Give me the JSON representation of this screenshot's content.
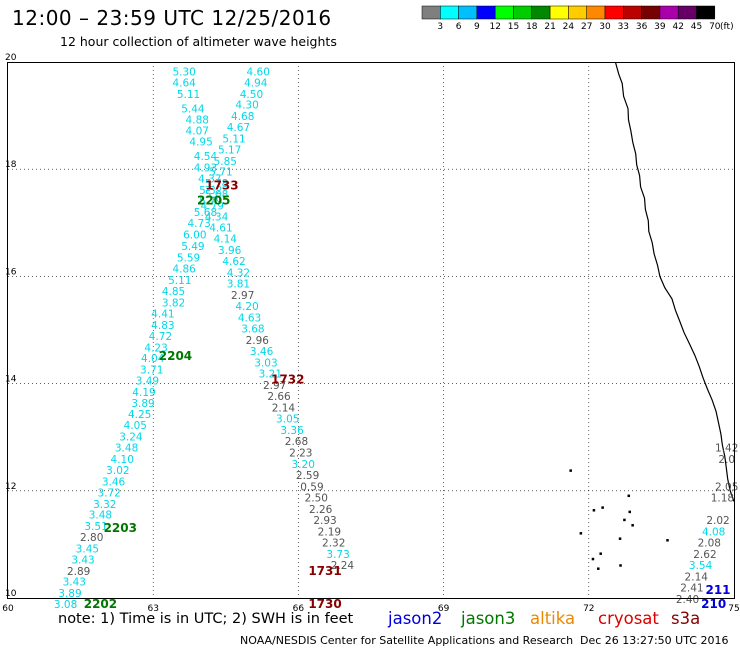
{
  "title": "12:00 – 23:59 UTC 12/25/2016",
  "subtitle": "12 hour collection of altimeter wave heights",
  "legend": {
    "unit_label": "(ft)",
    "bins": [
      {
        "color": "#7f7f7f",
        "label": "3"
      },
      {
        "color": "#00ffff",
        "label": "6"
      },
      {
        "color": "#00bfff",
        "label": "9"
      },
      {
        "color": "#0000ff",
        "label": "12"
      },
      {
        "color": "#00ff00",
        "label": "15"
      },
      {
        "color": "#00cc00",
        "label": "18"
      },
      {
        "color": "#008800",
        "label": "21"
      },
      {
        "color": "#ffff00",
        "label": "24"
      },
      {
        "color": "#ffcc00",
        "label": "27"
      },
      {
        "color": "#ff8800",
        "label": "30"
      },
      {
        "color": "#ff0000",
        "label": "33"
      },
      {
        "color": "#bb0000",
        "label": "36"
      },
      {
        "color": "#770000",
        "label": "39"
      },
      {
        "color": "#aa00aa",
        "label": "42"
      },
      {
        "color": "#660066",
        "label": "45"
      },
      {
        "color": "#000000",
        "label": "70"
      }
    ]
  },
  "map": {
    "lon_range": [
      60,
      75
    ],
    "lat_range": [
      10,
      20
    ],
    "lon_ticks": [
      60,
      63,
      66,
      69,
      72,
      75
    ],
    "lat_ticks": [
      10,
      12,
      14,
      16,
      18,
      20
    ]
  },
  "colors": {
    "cyan": "#00d8e8",
    "gray": "#555555",
    "blue": "#0000dd",
    "green": "#007700",
    "orange": "#ee8800",
    "red": "#dd0000",
    "darkred": "#880000"
  },
  "tracks": [
    {
      "name": "track-a",
      "points": [
        {
          "lon": 63.64,
          "lat": 19.75,
          "v": "5.30",
          "c": "cyan"
        },
        {
          "lon": 63.64,
          "lat": 19.54,
          "v": "4.64",
          "c": "cyan"
        },
        {
          "lon": 63.73,
          "lat": 19.33,
          "v": "5.11",
          "c": "cyan"
        },
        {
          "lon": 63.82,
          "lat": 19.06,
          "v": "5.44",
          "c": "cyan"
        },
        {
          "lon": 63.91,
          "lat": 18.85,
          "v": "4.88",
          "c": "cyan"
        },
        {
          "lon": 63.91,
          "lat": 18.65,
          "v": "4.07",
          "c": "cyan"
        },
        {
          "lon": 63.99,
          "lat": 18.44,
          "v": "4.95",
          "c": "cyan"
        },
        {
          "lon": 64.08,
          "lat": 18.17,
          "v": "4.54",
          "c": "cyan"
        },
        {
          "lon": 64.08,
          "lat": 17.96,
          "v": "4.93",
          "c": "cyan"
        },
        {
          "lon": 64.17,
          "lat": 17.75,
          "v": "4.37",
          "c": "cyan"
        },
        {
          "lon": 64.19,
          "lat": 17.54,
          "v": "5.32",
          "c": "cyan"
        },
        {
          "lon": 64.19,
          "lat": 17.34,
          "v": "5.79",
          "c": "cyan"
        },
        {
          "lon": 64.08,
          "lat": 17.13,
          "v": "5.68",
          "c": "cyan"
        },
        {
          "lon": 63.95,
          "lat": 16.92,
          "v": "4.73",
          "c": "cyan"
        },
        {
          "lon": 63.86,
          "lat": 16.71,
          "v": "6.00",
          "c": "cyan"
        },
        {
          "lon": 63.82,
          "lat": 16.49,
          "v": "5.49",
          "c": "cyan"
        },
        {
          "lon": 63.73,
          "lat": 16.28,
          "v": "5.59",
          "c": "cyan"
        },
        {
          "lon": 63.64,
          "lat": 16.07,
          "v": "4.86",
          "c": "cyan"
        },
        {
          "lon": 63.55,
          "lat": 15.86,
          "v": "5.11",
          "c": "cyan"
        },
        {
          "lon": 63.42,
          "lat": 15.65,
          "v": "4.85",
          "c": "cyan"
        },
        {
          "lon": 63.42,
          "lat": 15.44,
          "v": "3.82",
          "c": "cyan"
        },
        {
          "lon": 63.2,
          "lat": 15.23,
          "v": "4.41",
          "c": "cyan"
        },
        {
          "lon": 63.2,
          "lat": 15.02,
          "v": "4.83",
          "c": "cyan"
        },
        {
          "lon": 63.15,
          "lat": 14.81,
          "v": "4.72",
          "c": "cyan"
        },
        {
          "lon": 63.06,
          "lat": 14.6,
          "v": "4.23",
          "c": "cyan"
        },
        {
          "lon": 62.99,
          "lat": 14.4,
          "v": "4.04",
          "c": "cyan"
        },
        {
          "lon": 62.97,
          "lat": 14.19,
          "v": "3.71",
          "c": "cyan"
        },
        {
          "lon": 62.88,
          "lat": 13.98,
          "v": "3.49",
          "c": "cyan"
        },
        {
          "lon": 62.81,
          "lat": 13.77,
          "v": "4.19",
          "c": "cyan"
        },
        {
          "lon": 62.79,
          "lat": 13.56,
          "v": "3.89",
          "c": "cyan"
        },
        {
          "lon": 62.72,
          "lat": 13.36,
          "v": "4.25",
          "c": "cyan"
        },
        {
          "lon": 62.63,
          "lat": 13.15,
          "v": "4.05",
          "c": "cyan"
        },
        {
          "lon": 62.54,
          "lat": 12.94,
          "v": "3.24",
          "c": "cyan"
        },
        {
          "lon": 62.45,
          "lat": 12.73,
          "v": "3.48",
          "c": "cyan"
        },
        {
          "lon": 62.36,
          "lat": 12.52,
          "v": "4.10",
          "c": "cyan"
        },
        {
          "lon": 62.27,
          "lat": 12.31,
          "v": "3.02",
          "c": "cyan"
        },
        {
          "lon": 62.18,
          "lat": 12.1,
          "v": "3.46",
          "c": "cyan"
        },
        {
          "lon": 62.09,
          "lat": 11.89,
          "v": "3.72",
          "c": "cyan"
        },
        {
          "lon": 62.0,
          "lat": 11.68,
          "v": "3.32",
          "c": "cyan"
        },
        {
          "lon": 61.91,
          "lat": 11.48,
          "v": "3.48",
          "c": "cyan"
        },
        {
          "lon": 61.82,
          "lat": 11.27,
          "v": "3.51",
          "c": "cyan"
        },
        {
          "lon": 61.73,
          "lat": 11.06,
          "v": "2.80",
          "c": "gray"
        },
        {
          "lon": 61.64,
          "lat": 10.85,
          "v": "3.45",
          "c": "cyan"
        },
        {
          "lon": 61.55,
          "lat": 10.64,
          "v": "3.43",
          "c": "cyan"
        },
        {
          "lon": 61.46,
          "lat": 10.43,
          "v": "2.89",
          "c": "gray"
        },
        {
          "lon": 61.37,
          "lat": 10.23,
          "v": "3.43",
          "c": "cyan"
        },
        {
          "lon": 61.28,
          "lat": 10.02,
          "v": "3.89",
          "c": "cyan"
        },
        {
          "lon": 61.19,
          "lat": 9.81,
          "v": "3.08",
          "c": "cyan"
        }
      ]
    },
    {
      "name": "track-b",
      "points": [
        {
          "lon": 65.17,
          "lat": 19.75,
          "v": "4.60",
          "c": "cyan"
        },
        {
          "lon": 65.12,
          "lat": 19.54,
          "v": "4.94",
          "c": "cyan"
        },
        {
          "lon": 65.03,
          "lat": 19.33,
          "v": "4.50",
          "c": "cyan"
        },
        {
          "lon": 64.94,
          "lat": 19.13,
          "v": "4.30",
          "c": "cyan"
        },
        {
          "lon": 64.85,
          "lat": 18.92,
          "v": "4.68",
          "c": "cyan"
        },
        {
          "lon": 64.76,
          "lat": 18.71,
          "v": "4.67",
          "c": "cyan"
        },
        {
          "lon": 64.67,
          "lat": 18.5,
          "v": "5.11",
          "c": "cyan"
        },
        {
          "lon": 64.58,
          "lat": 18.29,
          "v": "5.17",
          "c": "cyan"
        },
        {
          "lon": 64.49,
          "lat": 18.08,
          "v": "5.85",
          "c": "cyan"
        },
        {
          "lon": 64.4,
          "lat": 17.88,
          "v": "5.71",
          "c": "cyan"
        },
        {
          "lon": 64.31,
          "lat": 17.67,
          "v": "5.78",
          "c": "cyan"
        },
        {
          "lon": 64.31,
          "lat": 17.46,
          "v": "5.08",
          "c": "cyan"
        },
        {
          "lon": 64.22,
          "lat": 17.25,
          "v": "4.79",
          "c": "cyan"
        },
        {
          "lon": 64.31,
          "lat": 17.04,
          "v": "4.34",
          "c": "cyan"
        },
        {
          "lon": 64.4,
          "lat": 16.84,
          "v": "4.61",
          "c": "cyan"
        },
        {
          "lon": 64.49,
          "lat": 16.63,
          "v": "4.14",
          "c": "cyan"
        },
        {
          "lon": 64.58,
          "lat": 16.42,
          "v": "3.96",
          "c": "cyan"
        },
        {
          "lon": 64.67,
          "lat": 16.21,
          "v": "4.62",
          "c": "cyan"
        },
        {
          "lon": 64.76,
          "lat": 16.0,
          "v": "4.32",
          "c": "cyan"
        },
        {
          "lon": 64.76,
          "lat": 15.79,
          "v": "3.81",
          "c": "cyan"
        },
        {
          "lon": 64.85,
          "lat": 15.58,
          "v": "2.97",
          "c": "gray"
        },
        {
          "lon": 64.94,
          "lat": 15.37,
          "v": "4.20",
          "c": "cyan"
        },
        {
          "lon": 64.99,
          "lat": 15.16,
          "v": "4.63",
          "c": "cyan"
        },
        {
          "lon": 65.06,
          "lat": 14.95,
          "v": "3.68",
          "c": "cyan"
        },
        {
          "lon": 65.15,
          "lat": 14.74,
          "v": "2.96",
          "c": "gray"
        },
        {
          "lon": 65.24,
          "lat": 14.53,
          "v": "3.46",
          "c": "cyan"
        },
        {
          "lon": 65.33,
          "lat": 14.32,
          "v": "3.03",
          "c": "cyan"
        },
        {
          "lon": 65.42,
          "lat": 14.11,
          "v": "3.21",
          "c": "cyan"
        },
        {
          "lon": 65.51,
          "lat": 13.9,
          "v": "2.97",
          "c": "gray"
        },
        {
          "lon": 65.6,
          "lat": 13.69,
          "v": "2.66",
          "c": "gray"
        },
        {
          "lon": 65.69,
          "lat": 13.48,
          "v": "2.14",
          "c": "gray"
        },
        {
          "lon": 65.78,
          "lat": 13.27,
          "v": "3.05",
          "c": "cyan"
        },
        {
          "lon": 65.87,
          "lat": 13.06,
          "v": "3.36",
          "c": "cyan"
        },
        {
          "lon": 65.96,
          "lat": 12.85,
          "v": "2.68",
          "c": "gray"
        },
        {
          "lon": 66.05,
          "lat": 12.64,
          "v": "2.23",
          "c": "gray"
        },
        {
          "lon": 66.1,
          "lat": 12.43,
          "v": "3.20",
          "c": "cyan"
        },
        {
          "lon": 66.19,
          "lat": 12.22,
          "v": "2.59",
          "c": "gray"
        },
        {
          "lon": 66.28,
          "lat": 12.01,
          "v": "0.59",
          "c": "gray"
        },
        {
          "lon": 66.37,
          "lat": 11.8,
          "v": "2.50",
          "c": "gray"
        },
        {
          "lon": 66.46,
          "lat": 11.59,
          "v": "2.26",
          "c": "gray"
        },
        {
          "lon": 66.55,
          "lat": 11.38,
          "v": "2.93",
          "c": "gray"
        },
        {
          "lon": 66.64,
          "lat": 11.17,
          "v": "2.19",
          "c": "gray"
        },
        {
          "lon": 66.73,
          "lat": 10.96,
          "v": "2.32",
          "c": "gray"
        },
        {
          "lon": 66.82,
          "lat": 10.75,
          "v": "3.73",
          "c": "cyan"
        },
        {
          "lon": 66.91,
          "lat": 10.54,
          "v": "2.24",
          "c": "gray"
        }
      ]
    },
    {
      "name": "track-c",
      "points": [
        {
          "lon": 74.85,
          "lat": 12.73,
          "v": "1.42",
          "c": "gray"
        },
        {
          "lon": 74.85,
          "lat": 12.52,
          "v": "2.0",
          "c": "gray"
        },
        {
          "lon": 74.85,
          "lat": 12.01,
          "v": "2.05",
          "c": "gray"
        },
        {
          "lon": 74.76,
          "lat": 11.8,
          "v": "1.18",
          "c": "gray"
        },
        {
          "lon": 74.67,
          "lat": 11.38,
          "v": "2.02",
          "c": "gray"
        },
        {
          "lon": 74.58,
          "lat": 11.17,
          "v": "4.08",
          "c": "cyan"
        },
        {
          "lon": 74.49,
          "lat": 10.96,
          "v": "2.08",
          "c": "gray"
        },
        {
          "lon": 74.4,
          "lat": 10.75,
          "v": "2.62",
          "c": "gray"
        },
        {
          "lon": 74.31,
          "lat": 10.54,
          "v": "3.54",
          "c": "cyan"
        },
        {
          "lon": 74.22,
          "lat": 10.33,
          "v": "2.14",
          "c": "gray"
        },
        {
          "lon": 74.13,
          "lat": 10.12,
          "v": "2.41",
          "c": "gray"
        },
        {
          "lon": 74.04,
          "lat": 9.91,
          "v": "2.40",
          "c": "gray"
        }
      ]
    }
  ],
  "time_labels": [
    {
      "lon": 64.42,
      "lat": 17.62,
      "v": "1733",
      "c": "darkred"
    },
    {
      "lon": 64.25,
      "lat": 17.34,
      "v": "2205",
      "c": "green"
    },
    {
      "lon": 63.46,
      "lat": 14.44,
      "v": "2204",
      "c": "green"
    },
    {
      "lon": 65.78,
      "lat": 14.0,
      "v": "1732",
      "c": "darkred"
    },
    {
      "lon": 62.32,
      "lat": 11.23,
      "v": "2203",
      "c": "green"
    },
    {
      "lon": 66.55,
      "lat": 10.43,
      "v": "1731",
      "c": "darkred"
    },
    {
      "lon": 61.91,
      "lat": 9.81,
      "v": "2202",
      "c": "green"
    },
    {
      "lon": 66.55,
      "lat": 9.81,
      "v": "1730",
      "c": "darkred"
    },
    {
      "lon": 74.67,
      "lat": 10.07,
      "v": "211",
      "c": "blue"
    },
    {
      "lon": 74.58,
      "lat": 9.81,
      "v": "210",
      "c": "blue"
    }
  ],
  "coastline": [
    [
      72.55,
      20.0
    ],
    [
      72.62,
      19.77
    ],
    [
      72.69,
      19.6
    ],
    [
      72.72,
      19.36
    ],
    [
      72.81,
      19.13
    ],
    [
      72.82,
      18.92
    ],
    [
      72.87,
      18.71
    ],
    [
      72.91,
      18.5
    ],
    [
      72.97,
      18.29
    ],
    [
      72.99,
      18.08
    ],
    [
      73.05,
      17.88
    ],
    [
      73.07,
      17.67
    ],
    [
      73.15,
      17.46
    ],
    [
      73.17,
      17.25
    ],
    [
      73.23,
      17.04
    ],
    [
      73.24,
      16.84
    ],
    [
      73.31,
      16.63
    ],
    [
      73.35,
      16.42
    ],
    [
      73.42,
      16.21
    ],
    [
      73.47,
      16.0
    ],
    [
      73.57,
      15.79
    ],
    [
      73.72,
      15.58
    ],
    [
      73.79,
      15.37
    ],
    [
      73.88,
      15.16
    ],
    [
      73.97,
      14.95
    ],
    [
      74.08,
      14.74
    ],
    [
      74.19,
      14.53
    ],
    [
      74.28,
      14.32
    ],
    [
      74.36,
      14.11
    ],
    [
      74.45,
      13.9
    ],
    [
      74.55,
      13.69
    ],
    [
      74.63,
      13.48
    ],
    [
      74.68,
      13.27
    ],
    [
      74.73,
      13.06
    ],
    [
      74.76,
      12.85
    ],
    [
      74.81,
      12.64
    ],
    [
      74.84,
      12.43
    ],
    [
      74.87,
      12.22
    ],
    [
      74.92,
      12.01
    ],
    [
      75.0,
      11.8
    ]
  ],
  "islands": [
    [
      72.8,
      11.93
    ],
    [
      72.82,
      11.63
    ],
    [
      72.71,
      11.48
    ],
    [
      72.26,
      11.71
    ],
    [
      72.08,
      11.66
    ],
    [
      71.81,
      11.23
    ],
    [
      72.62,
      11.13
    ],
    [
      73.6,
      11.1
    ],
    [
      72.17,
      10.57
    ],
    [
      72.63,
      10.63
    ],
    [
      72.06,
      10.75
    ],
    [
      71.6,
      12.4
    ],
    [
      72.88,
      11.38
    ],
    [
      72.22,
      10.85
    ]
  ],
  "footnote": "note:  1) Time is in UTC;  2) SWH is in feet",
  "satellites": [
    {
      "name": "jason2",
      "color": "blue"
    },
    {
      "name": "jason3",
      "color": "green"
    },
    {
      "name": "altika",
      "color": "orange"
    },
    {
      "name": "cryosat",
      "color": "red"
    },
    {
      "name": "s3a",
      "color": "darkred"
    }
  ],
  "credit": "NOAA/NESDIS Center for Satellite Applications and Research",
  "timestamp": "Dec 26 13:27:50 UTC 2016"
}
